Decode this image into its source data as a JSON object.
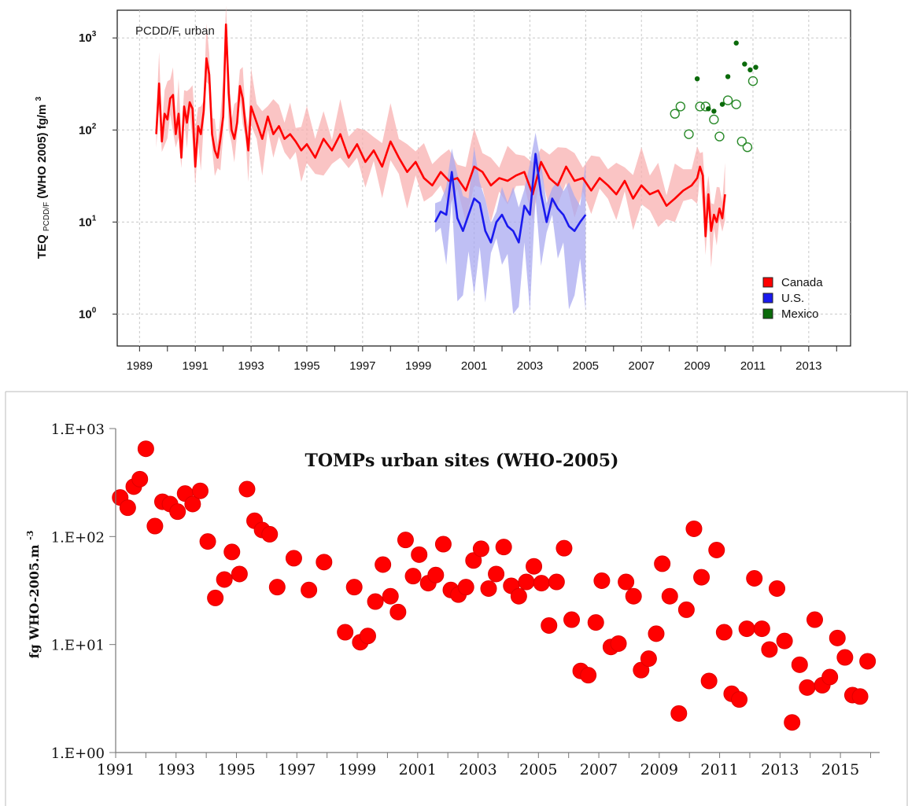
{
  "chart_data": [
    {
      "type": "line",
      "annotation": "PCDD/F, urban",
      "ylabel_main": "TEQ",
      "ylabel_sub": "PCDD/F",
      "ylabel_rest": "(WHO 2005) fg/m",
      "ylabel_sup": "3",
      "yscale": "log",
      "ylim": [
        0.45,
        2000
      ],
      "xlim": [
        1988.2,
        2014.5
      ],
      "y_ticks": [
        {
          "base": "10",
          "exp": "0"
        },
        {
          "base": "10",
          "exp": "1"
        },
        {
          "base": "10",
          "exp": "2"
        },
        {
          "base": "10",
          "exp": "3"
        }
      ],
      "x_tick_labels": [
        "1989",
        "1991",
        "1993",
        "1995",
        "1997",
        "1999",
        "2001",
        "2003",
        "2005",
        "2007",
        "2009",
        "2011",
        "2013"
      ],
      "grid": true,
      "legend_position": "bottom-right",
      "colors": {
        "Canada": "#ff0000",
        "Canada_band": "#f8b0b0",
        "U.S.": "#1a1aee",
        "U.S._band": "#aaaaf0",
        "Mexico": "#0a6a0a"
      },
      "series": [
        {
          "name": "Canada",
          "x": [
            1989.6,
            1989.7,
            1989.8,
            1989.9,
            1990.0,
            1990.1,
            1990.2,
            1990.3,
            1990.4,
            1990.5,
            1990.6,
            1990.7,
            1990.8,
            1990.9,
            1991.0,
            1991.1,
            1991.2,
            1991.3,
            1991.4,
            1991.5,
            1991.6,
            1991.7,
            1991.8,
            1991.9,
            1992.0,
            1992.1,
            1992.2,
            1992.3,
            1992.4,
            1992.5,
            1992.6,
            1992.7,
            1992.8,
            1992.9,
            1993.0,
            1993.2,
            1993.4,
            1993.6,
            1993.8,
            1994.0,
            1994.2,
            1994.4,
            1994.6,
            1994.8,
            1995.0,
            1995.3,
            1995.6,
            1995.9,
            1996.2,
            1996.5,
            1996.8,
            1997.1,
            1997.4,
            1997.7,
            1998.0,
            1998.3,
            1998.6,
            1998.9,
            1999.2,
            1999.5,
            1999.8,
            2000.1,
            2000.4,
            2000.7,
            2001.0,
            2001.3,
            2001.6,
            2001.9,
            2002.2,
            2002.5,
            2002.8,
            2003.1,
            2003.4,
            2003.7,
            2004.0,
            2004.3,
            2004.6,
            2004.9,
            2005.2,
            2005.5,
            2005.8,
            2006.1,
            2006.4,
            2006.7,
            2007.0,
            2007.3,
            2007.6,
            2007.9,
            2008.2,
            2008.5,
            2008.8,
            2009.0,
            2009.1,
            2009.2,
            2009.3,
            2009.4,
            2009.5,
            2009.6,
            2009.7,
            2009.8,
            2009.9,
            2010.0
          ],
          "values": [
            90,
            320,
            75,
            150,
            130,
            220,
            240,
            90,
            150,
            50,
            180,
            120,
            200,
            170,
            40,
            110,
            90,
            160,
            600,
            400,
            90,
            60,
            50,
            80,
            140,
            1400,
            250,
            100,
            80,
            120,
            300,
            220,
            110,
            60,
            180,
            120,
            80,
            140,
            90,
            110,
            80,
            90,
            75,
            60,
            70,
            50,
            80,
            60,
            90,
            50,
            70,
            45,
            60,
            40,
            75,
            50,
            35,
            45,
            30,
            25,
            35,
            28,
            30,
            22,
            40,
            35,
            25,
            30,
            28,
            32,
            35,
            20,
            45,
            30,
            25,
            40,
            28,
            30,
            22,
            30,
            25,
            20,
            28,
            18,
            25,
            20,
            22,
            15,
            18,
            22,
            25,
            30,
            40,
            32,
            7,
            20,
            8,
            12,
            10,
            14,
            11,
            20
          ]
        },
        {
          "name": "U.S.",
          "x": [
            1999.6,
            1999.8,
            2000.0,
            2000.2,
            2000.4,
            2000.6,
            2000.8,
            2001.0,
            2001.2,
            2001.4,
            2001.6,
            2001.8,
            2002.0,
            2002.2,
            2002.4,
            2002.6,
            2002.8,
            2003.0,
            2003.2,
            2003.4,
            2003.6,
            2003.8,
            2004.0,
            2004.2,
            2004.4,
            2004.6,
            2004.8,
            2005.0
          ],
          "values": [
            10,
            13,
            12,
            35,
            11,
            8,
            12,
            18,
            16,
            8,
            6,
            10,
            12,
            9,
            8,
            6,
            15,
            12,
            55,
            20,
            10,
            18,
            14,
            12,
            9,
            8,
            10,
            12
          ]
        },
        {
          "name": "Mexico",
          "marker": "open-circle",
          "x": [
            2008.2,
            2008.4,
            2008.7,
            2009.1,
            2009.3,
            2009.6,
            2009.8,
            2010.1,
            2010.4,
            2010.6,
            2010.8,
            2011.0
          ],
          "values": [
            150,
            180,
            90,
            180,
            180,
            130,
            85,
            210,
            190,
            75,
            65,
            340
          ]
        },
        {
          "name": "Mexico",
          "marker": "filled-dot",
          "x": [
            2009.0,
            2009.4,
            2009.6,
            2009.9,
            2010.1,
            2010.4,
            2010.7,
            2010.9,
            2011.1
          ],
          "values": [
            360,
            170,
            160,
            190,
            380,
            880,
            520,
            450,
            480
          ]
        }
      ],
      "legend": [
        {
          "label": "Canada",
          "color": "#ff0000"
        },
        {
          "label": "U.S.",
          "color": "#1a1aee"
        },
        {
          "label": "Mexico",
          "color": "#0a6a0a"
        }
      ]
    },
    {
      "type": "scatter",
      "title": "TOMPs urban sites (WHO-2005)",
      "ylabel": "fg WHO-2005.m",
      "ylabel_sup": "-3",
      "yscale": "log",
      "ylim": [
        1,
        1000
      ],
      "xlim": [
        1991,
        2016.3
      ],
      "y_tick_labels": [
        "1.E+00",
        "1.E+01",
        "1.E+02",
        "1.E+03"
      ],
      "x_tick_labels": [
        "1991",
        "1993",
        "1995",
        "1997",
        "1999",
        "2001",
        "2003",
        "2005",
        "2007",
        "2009",
        "2011",
        "2013",
        "2015"
      ],
      "color": "#ff0000",
      "x": [
        1991.15,
        1991.4,
        1991.6,
        1991.8,
        1992.0,
        1992.3,
        1992.55,
        1992.8,
        1993.05,
        1993.3,
        1993.55,
        1993.8,
        1994.05,
        1994.3,
        1994.6,
        1994.85,
        1995.1,
        1995.35,
        1995.6,
        1995.85,
        1996.1,
        1996.35,
        1996.9,
        1997.4,
        1997.9,
        1998.6,
        1998.9,
        1999.1,
        1999.35,
        1999.6,
        1999.85,
        2000.1,
        2000.35,
        2000.6,
        2000.85,
        2001.05,
        2001.35,
        2001.6,
        2001.85,
        2002.1,
        2002.35,
        2002.6,
        2002.85,
        2003.1,
        2003.35,
        2003.6,
        2003.85,
        2004.1,
        2004.35,
        2004.6,
        2004.85,
        2005.1,
        2005.35,
        2005.6,
        2005.85,
        2006.1,
        2006.4,
        2006.65,
        2006.9,
        2007.1,
        2007.4,
        2007.65,
        2007.9,
        2008.15,
        2008.4,
        2008.65,
        2008.9,
        2009.1,
        2009.35,
        2009.65,
        2009.9,
        2010.15,
        2010.4,
        2010.65,
        2010.9,
        2011.15,
        2011.4,
        2011.65,
        2011.9,
        2012.15,
        2012.4,
        2012.65,
        2012.9,
        2013.15,
        2013.4,
        2013.65,
        2013.9,
        2014.15,
        2014.4,
        2014.65,
        2014.9,
        2015.15,
        2015.4,
        2015.65,
        2015.9
      ],
      "values": [
        230,
        185,
        290,
        340,
        650,
        125,
        210,
        200,
        170,
        250,
        200,
        265,
        90,
        27,
        40,
        72,
        45,
        275,
        140,
        115,
        105,
        34,
        63,
        32,
        58,
        13,
        34,
        10.5,
        12,
        25,
        55,
        28,
        20,
        93,
        43,
        68,
        37,
        44,
        85,
        32,
        29,
        34,
        60,
        77,
        33,
        45,
        80,
        35,
        28,
        38,
        53,
        37,
        15,
        38,
        78,
        17,
        5.7,
        5.2,
        16,
        39,
        9.5,
        10.2,
        38,
        28,
        5.8,
        7.4,
        12.6,
        56,
        28,
        2.3,
        21,
        118,
        42,
        4.6,
        75,
        13,
        3.5,
        3.1,
        14,
        41,
        14,
        9,
        33,
        10.8,
        1.9,
        6.5,
        4,
        17,
        4.2,
        5,
        11.5,
        7.6,
        3.4,
        3.3,
        7
      ]
    }
  ]
}
